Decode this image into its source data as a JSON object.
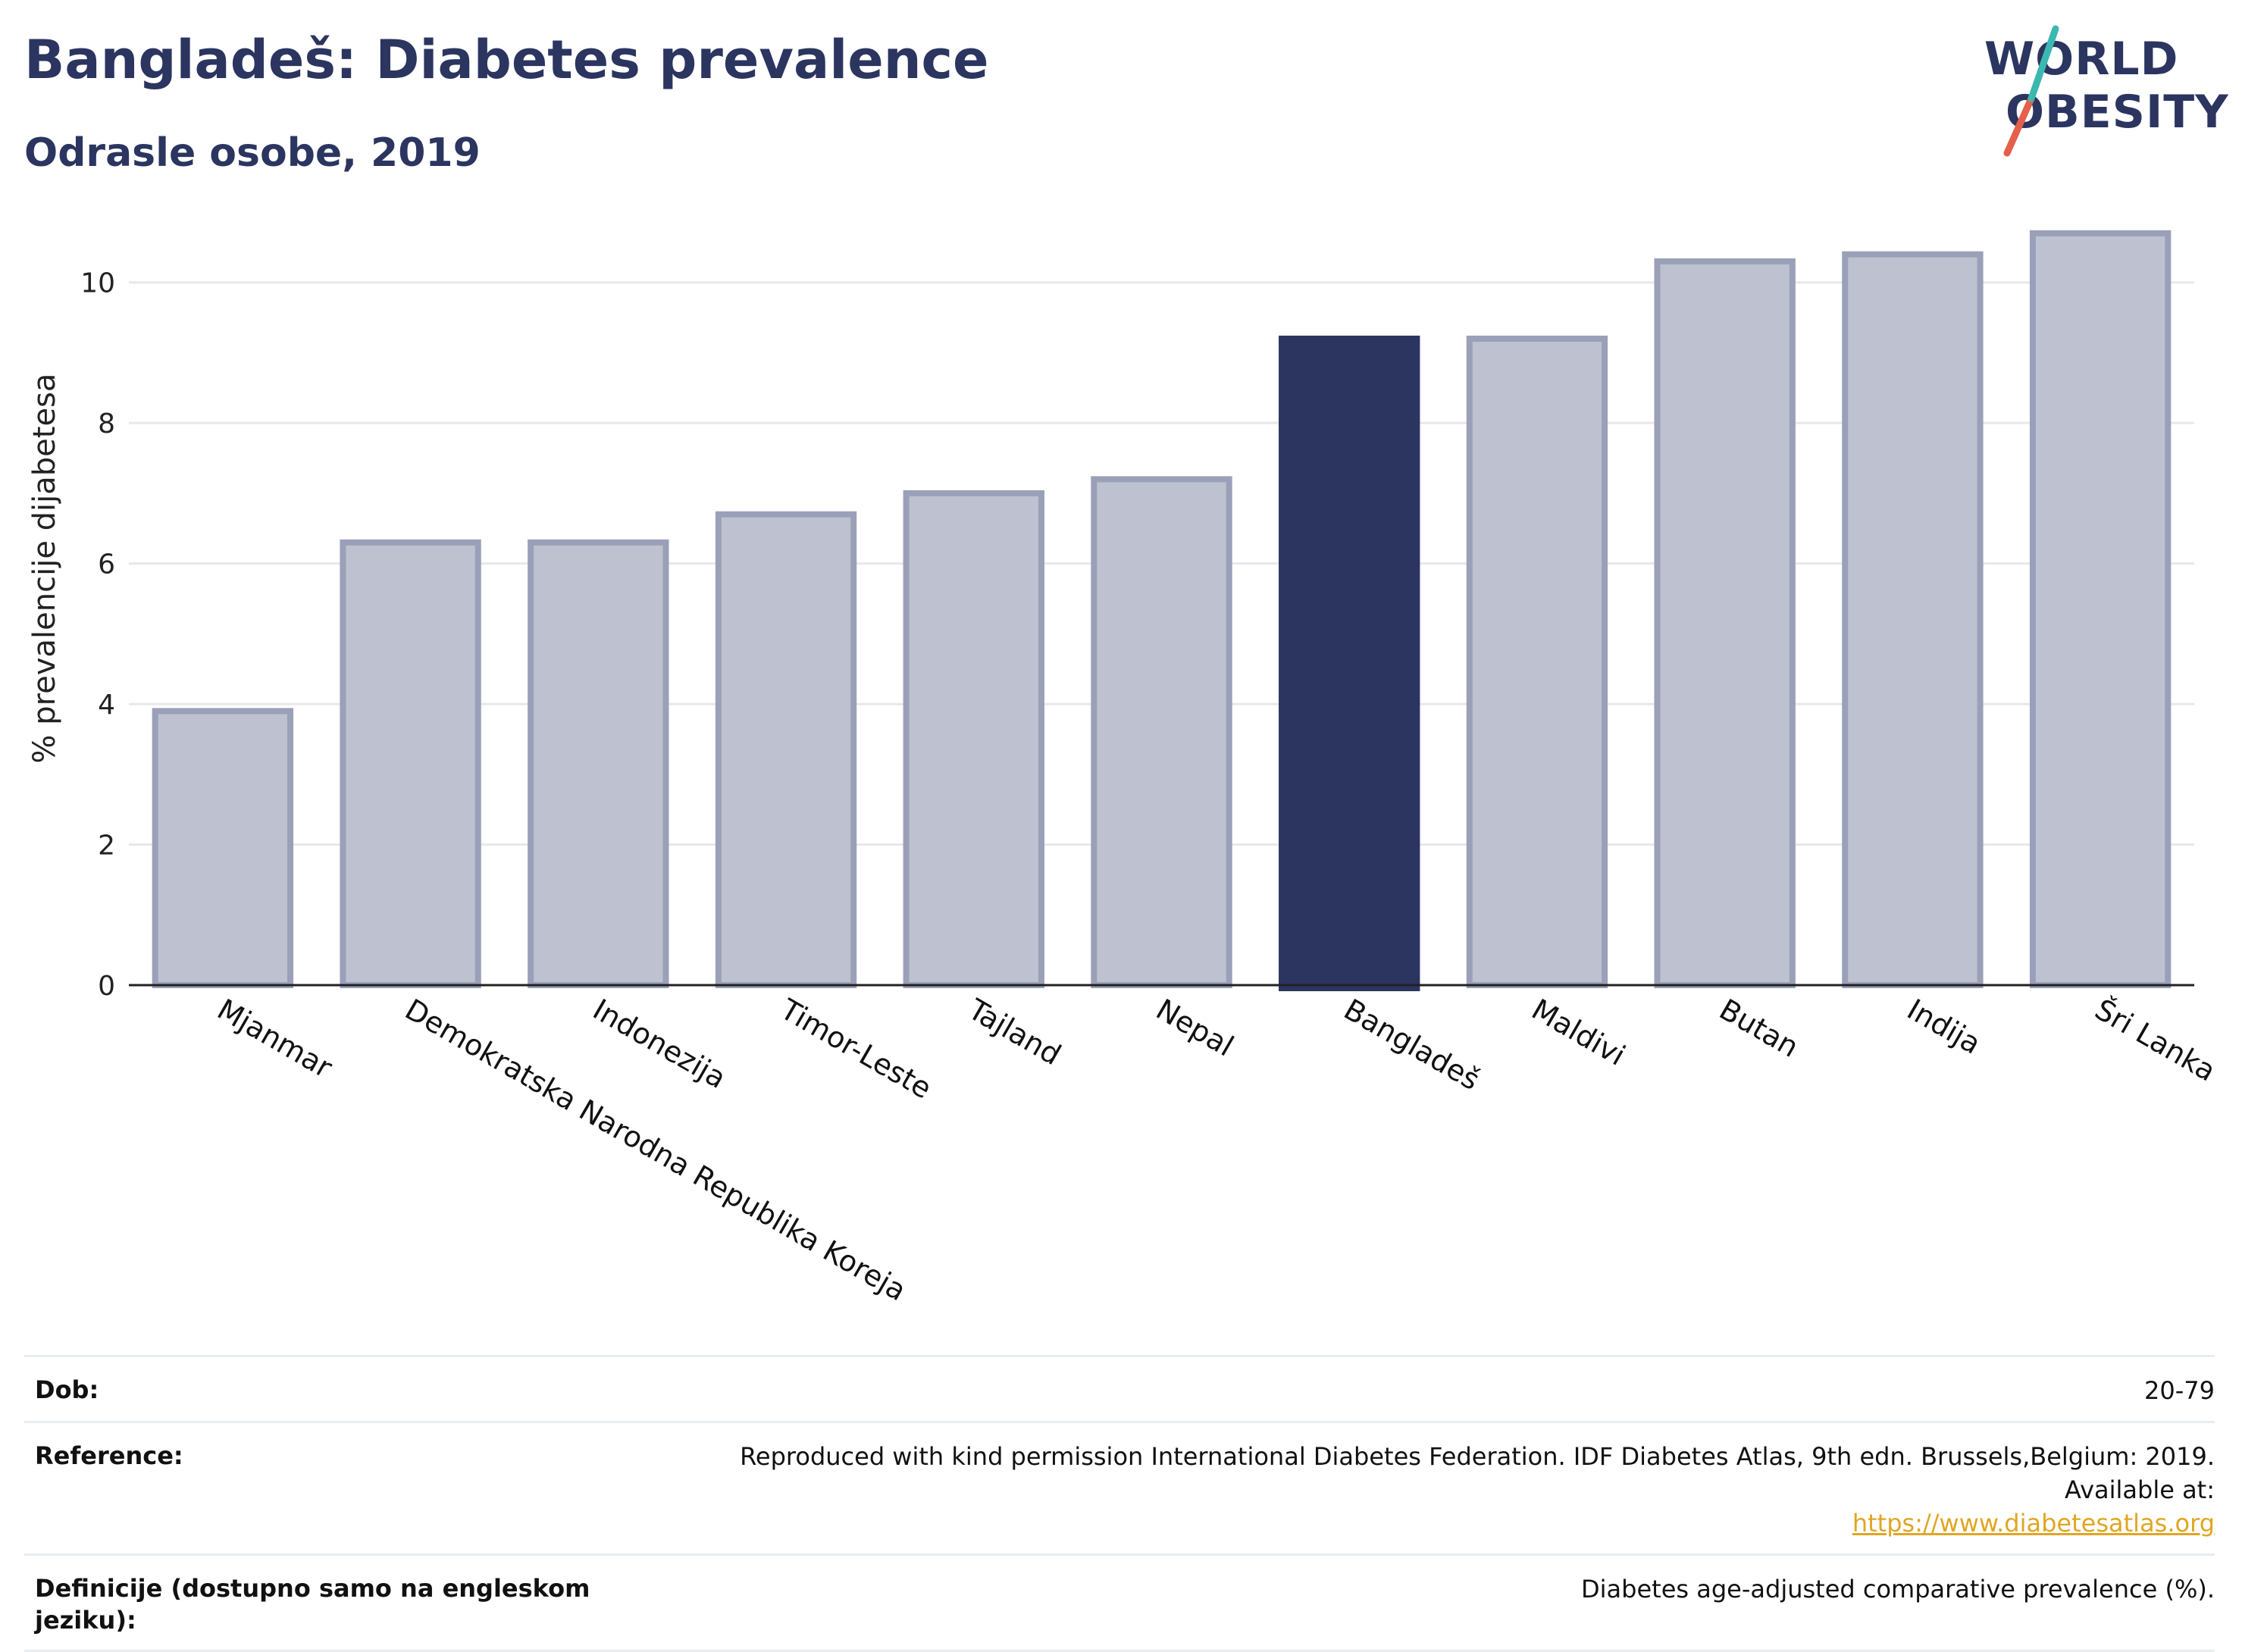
{
  "header": {
    "title": "Bangladeš: Diabetes prevalence",
    "subtitle": "Odrasle osobe, 2019"
  },
  "logo": {
    "line1": "WORLD",
    "line2": "OBESITY",
    "colors": {
      "text": "#2b3560",
      "slash_top": "#3bb8b0",
      "slash_bottom": "#e5604a"
    }
  },
  "chart_data": {
    "type": "bar",
    "ylabel": "% prevalencije dijabetesa",
    "ylim": [
      0,
      11
    ],
    "yticks": [
      0,
      2,
      4,
      6,
      8,
      10
    ],
    "grid": true,
    "categories": [
      "Mjanmar",
      "Demokratska Narodna Republika Koreja",
      "Indonezija",
      "Timor-Leste",
      "Tajland",
      "Nepal",
      "Bangladeš",
      "Maldivi",
      "Butan",
      "Indija",
      "Šri Lanka"
    ],
    "values": [
      3.9,
      6.3,
      6.3,
      6.7,
      7.0,
      7.2,
      9.2,
      9.2,
      10.3,
      10.4,
      10.7
    ],
    "highlight": "Bangladeš",
    "colors": {
      "bar": "#bec1cf",
      "bar_border": "#9aa0b8",
      "highlight": "#2b3560"
    }
  },
  "info": {
    "rows": [
      {
        "key": "Dob:",
        "value": "20-79"
      },
      {
        "key": "Reference:",
        "value": "Reproduced with kind permission International Diabetes Federation. IDF Diabetes Atlas, 9th edn. Brussels,Belgium: 2019. Available at:",
        "link": "https://www.diabetesatlas.org"
      },
      {
        "key": "Definicije (dostupno samo na engleskom jeziku):",
        "value": "Diabetes age-adjusted comparative prevalence (%)."
      }
    ]
  }
}
